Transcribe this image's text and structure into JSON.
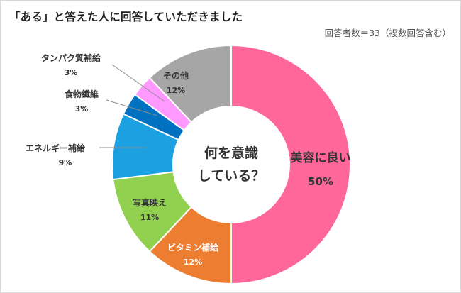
{
  "title": "「ある」と答えた人に回答していただきました",
  "note": "回答者数＝33（複数回答含む）",
  "center_label": [
    "何を意識",
    "している？"
  ],
  "chart_data": {
    "type": "pie",
    "donut": true,
    "title": "「ある」と答えた人に回答していただきました",
    "categories": [
      "美容に良い",
      "ビタミン補給",
      "写真映え",
      "エネルギー補給",
      "食物繊維",
      "タンパク質補給",
      "その他"
    ],
    "values": [
      50,
      12,
      11,
      9,
      3,
      3,
      12
    ],
    "value_labels": [
      "50%",
      "12%",
      "11%",
      "9%",
      "3%",
      "3%",
      "12%"
    ],
    "colors": [
      "#ff6699",
      "#ed7d31",
      "#92d050",
      "#1ba1e2",
      "#0070c0",
      "#ff99ff",
      "#a6a6a6"
    ],
    "start_angle_deg": 0,
    "direction": "clockwise",
    "legend": "none"
  }
}
